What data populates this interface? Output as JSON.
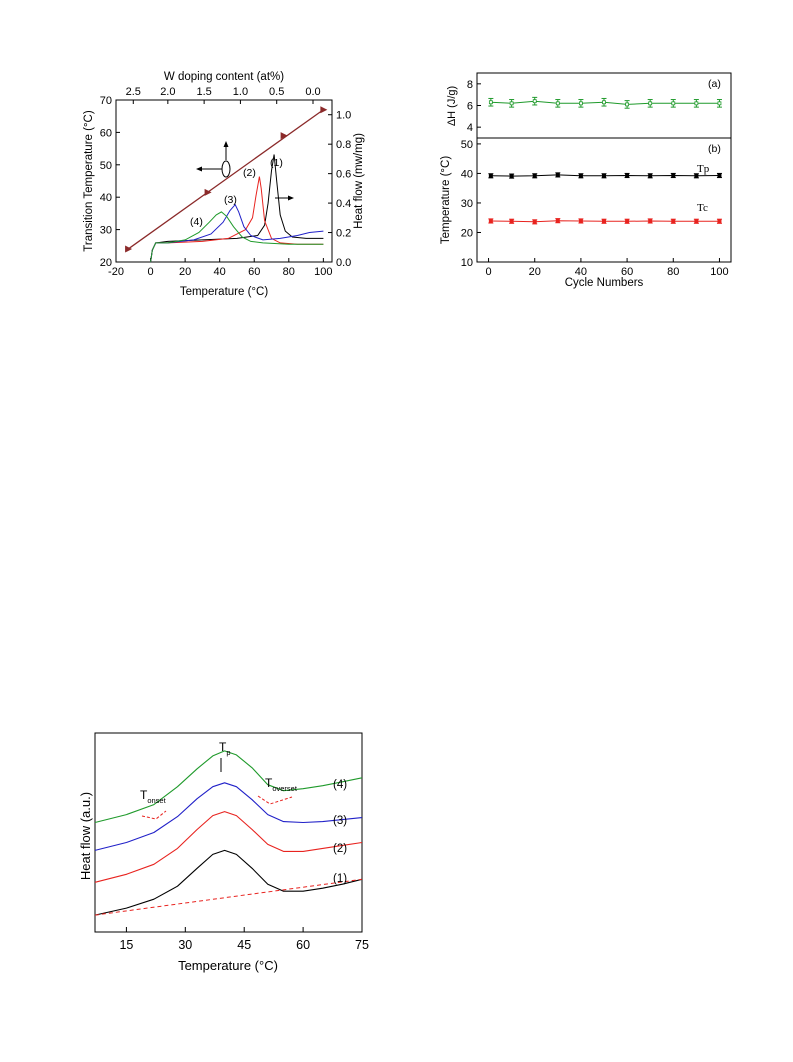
{
  "colors": {
    "axis": "#000000",
    "transition_line": "#8b2a2a",
    "curve1": "#000000",
    "curve2": "#e8231f",
    "curve3": "#2020c8",
    "curve4": "#1f9a2b",
    "baseline_dash": "#e8231f",
    "dh_series": "#1f9a2b",
    "tp_series": "#000000",
    "tc_series": "#e8231f"
  },
  "chart_data": [
    {
      "id": "fig1",
      "type": "line",
      "xlabel": "Temperature (°C)",
      "ylabel_left": "Transition Temperature (°C)",
      "ylabel_right": "Heat flow (mw/mg)",
      "xlabel_top": "W doping content (at%)",
      "xlim": [
        -20,
        105
      ],
      "ylim_left": [
        20,
        70
      ],
      "ylim_right": [
        0,
        1.1
      ],
      "x_ticks": [
        "-20",
        "0",
        "20",
        "40",
        "60",
        "80",
        "100"
      ],
      "y_left_ticks": [
        "20",
        "30",
        "40",
        "50",
        "60",
        "70"
      ],
      "y_right_ticks": [
        "0.0",
        "0.2",
        "0.4",
        "0.6",
        "0.8",
        "1.0"
      ],
      "top_ticks": [
        "2.5",
        "2.0",
        "1.5",
        "1.0",
        "0.5",
        "0.0"
      ],
      "top_tick_positions_x": [
        -10,
        10,
        31,
        52,
        73,
        94
      ],
      "curve_labels": [
        "(1)",
        "(2)",
        "(3)",
        "(4)"
      ],
      "transition_line": {
        "name": "Transition temperature",
        "x": [
          -13,
          100
        ],
        "y": [
          24,
          67
        ],
        "markers": [
          [
            -13,
            24
          ],
          [
            33,
            41.5
          ],
          [
            77,
            59
          ],
          [
            100,
            67
          ]
        ]
      },
      "series": [
        {
          "name": "(1)",
          "x": [
            0,
            1,
            3,
            10,
            30,
            50,
            62,
            66,
            68,
            70,
            71.5,
            73,
            75,
            78,
            82,
            90,
            100
          ],
          "y": [
            0.0,
            0.08,
            0.13,
            0.14,
            0.15,
            0.16,
            0.18,
            0.25,
            0.4,
            0.62,
            0.73,
            0.55,
            0.32,
            0.21,
            0.17,
            0.16,
            0.16
          ]
        },
        {
          "name": "(2)",
          "x": [
            0,
            1,
            3,
            10,
            30,
            45,
            55,
            59,
            61,
            63,
            64,
            66,
            70,
            75,
            85,
            100
          ],
          "y": [
            0.0,
            0.08,
            0.13,
            0.13,
            0.14,
            0.16,
            0.22,
            0.3,
            0.45,
            0.58,
            0.5,
            0.28,
            0.16,
            0.13,
            0.12,
            0.12
          ]
        },
        {
          "name": "(3)",
          "x": [
            0,
            1,
            3,
            10,
            25,
            35,
            42,
            46,
            49,
            51,
            54,
            58,
            65,
            75,
            85,
            92,
            100
          ],
          "y": [
            0.0,
            0.08,
            0.13,
            0.13,
            0.15,
            0.19,
            0.27,
            0.35,
            0.39,
            0.34,
            0.24,
            0.18,
            0.15,
            0.16,
            0.18,
            0.2,
            0.21
          ]
        },
        {
          "name": "(4)",
          "x": [
            0,
            1,
            3,
            10,
            20,
            28,
            34,
            38,
            41,
            44,
            48,
            53,
            58,
            65,
            80,
            100
          ],
          "y": [
            0.0,
            0.08,
            0.13,
            0.13,
            0.15,
            0.2,
            0.27,
            0.32,
            0.34,
            0.31,
            0.24,
            0.17,
            0.14,
            0.13,
            0.12,
            0.12
          ]
        }
      ]
    },
    {
      "id": "fig2",
      "type": "scatter",
      "xlabel": "Cycle Numbers",
      "panel_a_label": "(a)",
      "panel_b_label": "(b)",
      "panel_a_ylabel": "ΔH (J/g)",
      "panel_b_ylabel": "Temperature (°C)",
      "xlim": [
        -5,
        105
      ],
      "panel_a_ylim": [
        3,
        9
      ],
      "panel_b_ylim": [
        10,
        52
      ],
      "x_ticks": [
        "0",
        "20",
        "40",
        "60",
        "80",
        "100"
      ],
      "panel_a_y_ticks": [
        "4",
        "6",
        "8"
      ],
      "panel_b_y_ticks": [
        "10",
        "20",
        "30",
        "40",
        "50"
      ],
      "x": [
        1,
        10,
        20,
        30,
        40,
        50,
        60,
        70,
        80,
        90,
        100
      ],
      "series": [
        {
          "name": "ΔH",
          "panel": "a",
          "values": [
            6.3,
            6.2,
            6.4,
            6.2,
            6.2,
            6.3,
            6.1,
            6.2,
            6.2,
            6.2,
            6.2
          ],
          "err": 0.35
        },
        {
          "name": "Tp",
          "panel": "b",
          "values": [
            39.2,
            39.1,
            39.2,
            39.5,
            39.2,
            39.2,
            39.3,
            39.2,
            39.3,
            39.2,
            39.3
          ],
          "err": 0.7
        },
        {
          "name": "Tc",
          "panel": "b",
          "values": [
            23.9,
            23.8,
            23.6,
            24.0,
            23.9,
            23.8,
            23.8,
            23.9,
            23.8,
            23.8,
            23.8
          ],
          "err": 0.7
        }
      ]
    },
    {
      "id": "fig3",
      "type": "line",
      "xlabel": "Temperature (°C)",
      "ylabel": "Heat flow (a.u.)",
      "xlim": [
        7,
        75
      ],
      "ylim": [
        0,
        10
      ],
      "x_ticks": [
        "15",
        "30",
        "45",
        "60",
        "75"
      ],
      "annotations": {
        "peak": "T",
        "peak_sub": "p",
        "onset": "T",
        "onset_sub": "onset",
        "overset": "T",
        "overset_sub": "overset"
      },
      "curve_labels": [
        "(1)",
        "(2)",
        "(3)",
        "(4)"
      ],
      "series": [
        {
          "name": "(1)",
          "x": [
            7,
            15,
            22,
            28,
            33,
            37,
            40,
            43,
            47,
            51,
            55,
            60,
            65,
            70,
            75
          ],
          "y": [
            0.85,
            1.2,
            1.65,
            2.3,
            3.2,
            3.9,
            4.1,
            3.9,
            3.2,
            2.4,
            2.05,
            2.05,
            2.2,
            2.4,
            2.65
          ]
        },
        {
          "name": "(2)",
          "x": [
            7,
            15,
            22,
            28,
            33,
            37,
            40,
            43,
            47,
            51,
            55,
            60,
            65,
            70,
            75
          ],
          "y": [
            2.5,
            2.9,
            3.4,
            4.2,
            5.15,
            5.85,
            6.05,
            5.85,
            5.15,
            4.4,
            4.05,
            4.05,
            4.2,
            4.35,
            4.5
          ]
        },
        {
          "name": "(3)",
          "x": [
            7,
            15,
            22,
            28,
            33,
            37,
            40,
            43,
            47,
            51,
            55,
            60,
            65,
            70,
            75
          ],
          "y": [
            4.1,
            4.5,
            5.0,
            5.8,
            6.7,
            7.3,
            7.5,
            7.3,
            6.65,
            5.9,
            5.55,
            5.5,
            5.55,
            5.65,
            5.75
          ]
        },
        {
          "name": "(4)",
          "x": [
            7,
            15,
            22,
            28,
            33,
            37,
            40,
            43,
            47,
            51,
            55,
            60,
            65,
            70,
            75
          ],
          "y": [
            5.5,
            5.9,
            6.4,
            7.3,
            8.2,
            8.85,
            9.1,
            8.9,
            8.25,
            7.4,
            7.1,
            7.2,
            7.35,
            7.55,
            7.75
          ]
        },
        {
          "name": "baseline-1",
          "dashed": true,
          "x": [
            7,
            75
          ],
          "y": [
            0.85,
            2.65
          ]
        }
      ]
    }
  ]
}
